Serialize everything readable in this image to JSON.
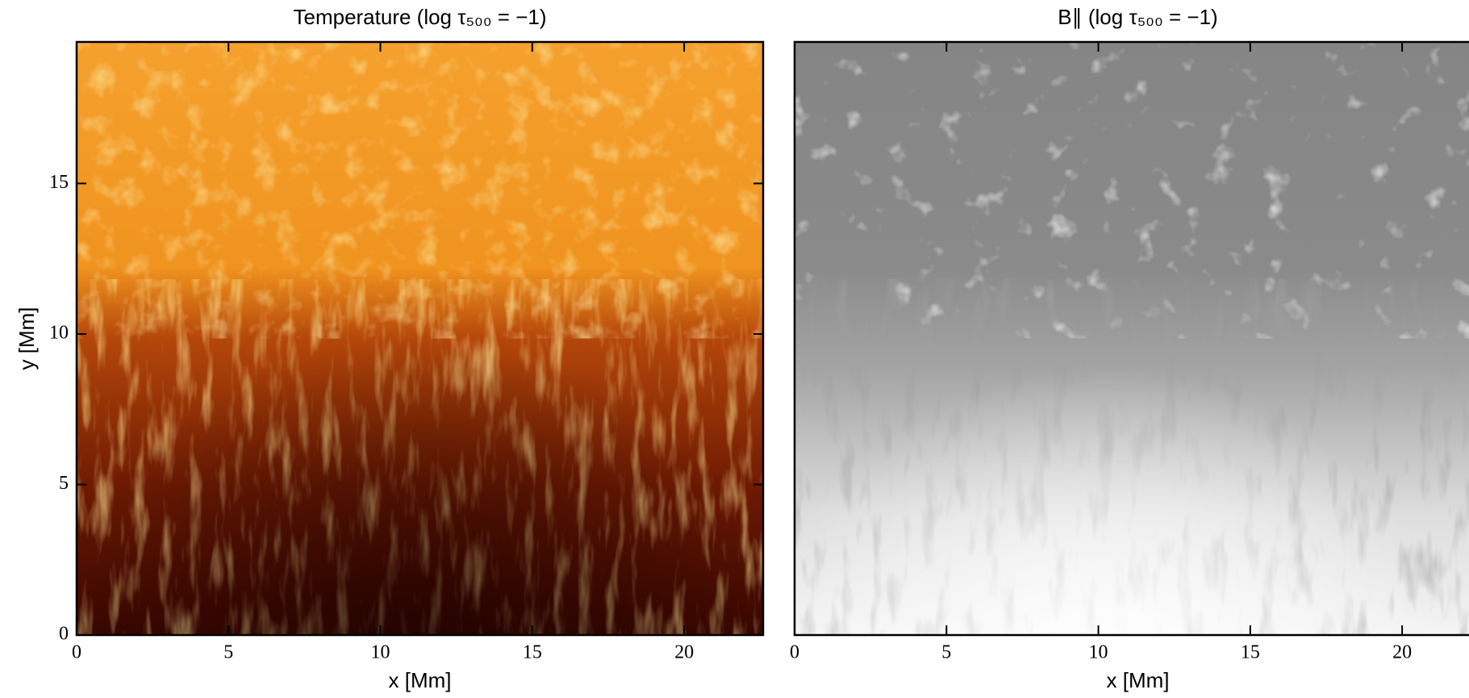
{
  "chart_data": [
    {
      "type": "image",
      "title": "Temperature (log τ₅₀₀ = −1)",
      "x_label": "x [Mm]",
      "y_label": "y [Mm]",
      "xlim": [
        0,
        22.6
      ],
      "ylim": [
        0,
        19.7
      ],
      "xticks": [
        0,
        5,
        10,
        15,
        20
      ],
      "yticks": [
        0,
        5,
        10,
        15
      ]
    },
    {
      "type": "image",
      "title": "B∥ (log τ₅₀₀ = −1)",
      "x_label": "x [Mm]",
      "xlim": [
        0,
        22.6
      ],
      "ylim": [
        0,
        19.7
      ],
      "xticks": [
        0,
        5,
        10,
        15,
        20
      ]
    }
  ]
}
